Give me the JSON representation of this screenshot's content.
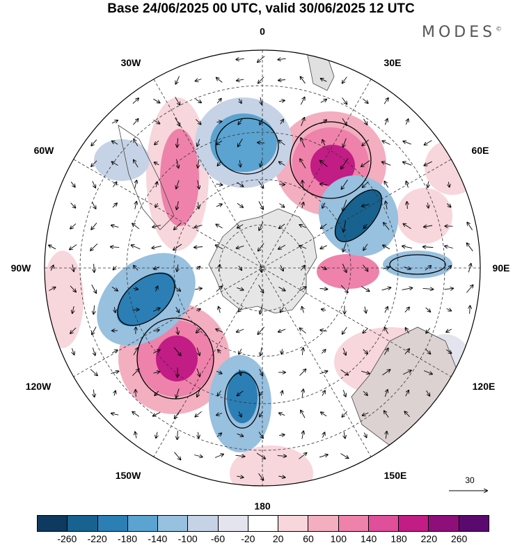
{
  "title": "Base 24/06/2025 00 UTC, valid 30/06/2025 12 UTC",
  "brand": "MODES",
  "brand_mark": "©",
  "longitude_labels": {
    "lon_0": "0",
    "lon_30e": "30E",
    "lon_60e": "60E",
    "lon_90e": "90E",
    "lon_120e": "120E",
    "lon_150e": "150E",
    "lon_180": "180",
    "lon_150w": "150W",
    "lon_120w": "120W",
    "lon_90w": "90W",
    "lon_60w": "60W",
    "lon_30w": "30W"
  },
  "reference_vector": "30",
  "colorbar": {
    "colors": [
      "#0d3a5e",
      "#17628f",
      "#2b7fb5",
      "#5ba3d0",
      "#98c0df",
      "#c6d3e6",
      "#e4e4ef",
      "#ffffff",
      "#f7d6dc",
      "#f3aec0",
      "#ee82aa",
      "#e04f9a",
      "#c21c85",
      "#8e0f7a",
      "#5a0a6e"
    ],
    "ticks": [
      "-260",
      "-220",
      "-180",
      "-140",
      "-100",
      "-60",
      "-20",
      "20",
      "60",
      "100",
      "140",
      "180",
      "220",
      "260"
    ]
  }
}
